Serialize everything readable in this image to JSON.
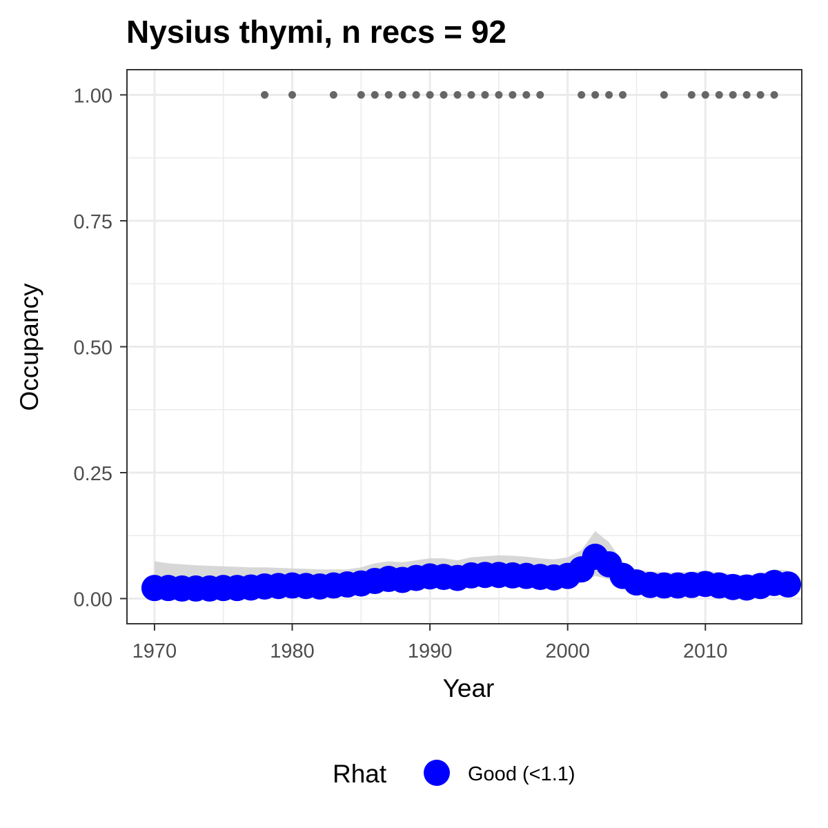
{
  "chart_data": {
    "type": "line",
    "title": "Nysius thymi, n recs = 92",
    "xlabel": "Year",
    "ylabel": "Occupancy",
    "xlim": [
      1968,
      2017
    ],
    "ylim": [
      -0.05,
      1.05
    ],
    "x_ticks": [
      1970,
      1980,
      1990,
      2000,
      2010
    ],
    "y_ticks": [
      0.0,
      0.25,
      0.5,
      0.75,
      1.0
    ],
    "y_tick_labels": [
      "0.00",
      "0.25",
      "0.50",
      "0.75",
      "1.00"
    ],
    "grid": true,
    "colors": {
      "series": "#0000ff",
      "ribbon": "#d3d3d3",
      "records": "#666666",
      "grid": "#ebebeb",
      "border": "#333333"
    },
    "series": [
      {
        "name": "Occupancy",
        "x": [
          1970,
          1971,
          1972,
          1973,
          1974,
          1975,
          1976,
          1977,
          1978,
          1979,
          1980,
          1981,
          1982,
          1983,
          1984,
          1985,
          1986,
          1987,
          1988,
          1989,
          1990,
          1991,
          1992,
          1993,
          1994,
          1995,
          1996,
          1997,
          1998,
          1999,
          2000,
          2001,
          2002,
          2003,
          2004,
          2005,
          2006,
          2007,
          2008,
          2009,
          2010,
          2011,
          2012,
          2013,
          2014,
          2015,
          2016
        ],
        "y": [
          0.021,
          0.021,
          0.02,
          0.02,
          0.02,
          0.021,
          0.021,
          0.022,
          0.024,
          0.025,
          0.026,
          0.025,
          0.024,
          0.026,
          0.028,
          0.03,
          0.035,
          0.039,
          0.037,
          0.041,
          0.044,
          0.043,
          0.041,
          0.046,
          0.047,
          0.047,
          0.046,
          0.045,
          0.043,
          0.042,
          0.045,
          0.058,
          0.083,
          0.068,
          0.045,
          0.032,
          0.027,
          0.026,
          0.026,
          0.027,
          0.029,
          0.026,
          0.023,
          0.022,
          0.025,
          0.031,
          0.028
        ],
        "lower": [
          0.008,
          0.008,
          0.008,
          0.008,
          0.008,
          0.009,
          0.009,
          0.009,
          0.01,
          0.011,
          0.011,
          0.011,
          0.011,
          0.012,
          0.013,
          0.014,
          0.016,
          0.018,
          0.018,
          0.02,
          0.022,
          0.021,
          0.02,
          0.023,
          0.024,
          0.024,
          0.023,
          0.022,
          0.021,
          0.021,
          0.023,
          0.031,
          0.045,
          0.038,
          0.024,
          0.016,
          0.013,
          0.013,
          0.013,
          0.013,
          0.014,
          0.012,
          0.01,
          0.009,
          0.011,
          0.014,
          0.012
        ],
        "upper": [
          0.074,
          0.07,
          0.068,
          0.066,
          0.065,
          0.064,
          0.063,
          0.062,
          0.062,
          0.061,
          0.06,
          0.059,
          0.058,
          0.058,
          0.058,
          0.062,
          0.07,
          0.074,
          0.072,
          0.076,
          0.08,
          0.08,
          0.076,
          0.082,
          0.084,
          0.086,
          0.085,
          0.083,
          0.08,
          0.078,
          0.082,
          0.096,
          0.134,
          0.112,
          0.072,
          0.058,
          0.054,
          0.052,
          0.052,
          0.053,
          0.055,
          0.052,
          0.048,
          0.046,
          0.05,
          0.058,
          0.056
        ]
      }
    ],
    "records": {
      "y": 1.0,
      "years": [
        1978,
        1980,
        1983,
        1985,
        1986,
        1987,
        1988,
        1989,
        1990,
        1991,
        1992,
        1993,
        1994,
        1995,
        1996,
        1997,
        1998,
        2001,
        2002,
        2003,
        2004,
        2007,
        2009,
        2010,
        2011,
        2012,
        2013,
        2014,
        2015
      ]
    },
    "legend": {
      "position": "bottom",
      "title": "Rhat",
      "items": [
        {
          "label": "Good (<1.1)",
          "color": "#0000ff"
        }
      ]
    }
  }
}
